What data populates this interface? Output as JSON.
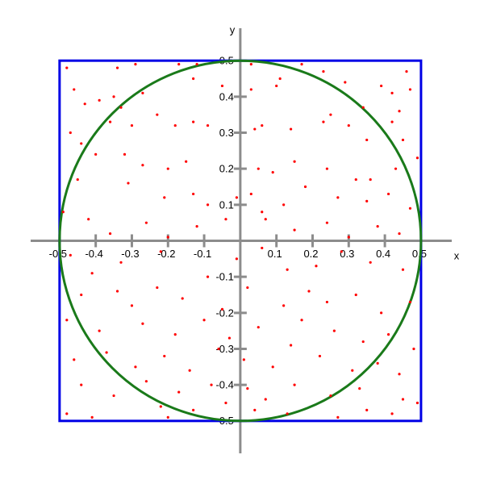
{
  "chart_data": {
    "type": "scatter",
    "x_label": "x",
    "y_label": "y",
    "xlim": [
      -0.58,
      0.585
    ],
    "ylim": [
      -0.59,
      0.59
    ],
    "xticks": [
      -0.5,
      -0.4,
      -0.3,
      -0.2,
      -0.1,
      0.1,
      0.2,
      0.3,
      0.4,
      0.5
    ],
    "yticks": [
      -0.5,
      -0.4,
      -0.3,
      -0.2,
      -0.1,
      0.1,
      0.2,
      0.3,
      0.4,
      0.5
    ],
    "color": "#ff0000",
    "square": {
      "bounds": [
        -0.5,
        0.5
      ],
      "color": "#0000e6"
    },
    "circle": {
      "radius": 0.5,
      "color": "#1a7a1a"
    },
    "x": [
      -0.48,
      -0.34,
      -0.29,
      -0.17,
      -0.12,
      0.03,
      0.17,
      0.46,
      -0.46,
      -0.43,
      -0.39,
      -0.35,
      -0.33,
      -0.27,
      -0.13,
      -0.05,
      0.03,
      0.1,
      0.11,
      0.23,
      0.29,
      0.34,
      0.39,
      0.42,
      0.44,
      0.47,
      -0.47,
      -0.44,
      -0.36,
      -0.3,
      -0.23,
      -0.18,
      -0.13,
      -0.09,
      0.04,
      0.06,
      0.14,
      0.23,
      0.25,
      0.3,
      0.35,
      0.42,
      0.45,
      -0.4,
      -0.32,
      -0.27,
      -0.2,
      -0.15,
      0.05,
      0.09,
      0.15,
      0.24,
      0.32,
      0.36,
      0.43,
      0.49,
      -0.45,
      -0.31,
      -0.21,
      -0.13,
      -0.09,
      -0.01,
      0.03,
      0.06,
      0.12,
      0.18,
      0.27,
      0.35,
      0.41,
      0.47,
      -0.49,
      -0.42,
      -0.36,
      -0.26,
      -0.2,
      -0.12,
      -0.04,
      0.07,
      0.15,
      0.24,
      0.3,
      0.38,
      0.44,
      -0.47,
      -0.41,
      -0.33,
      -0.22,
      -0.09,
      -0.01,
      0.06,
      0.13,
      0.21,
      0.28,
      0.36,
      0.45,
      -0.44,
      -0.34,
      -0.3,
      -0.23,
      -0.16,
      -0.05,
      0.02,
      0.12,
      0.19,
      0.24,
      0.32,
      0.39,
      0.47,
      -0.48,
      -0.39,
      -0.27,
      -0.18,
      -0.1,
      -0.03,
      0.05,
      0.17,
      0.26,
      0.34,
      0.41,
      0.48,
      -0.46,
      -0.37,
      -0.29,
      -0.21,
      -0.14,
      -0.06,
      0.01,
      0.09,
      0.14,
      0.22,
      0.31,
      0.38,
      0.44,
      -0.44,
      -0.35,
      -0.26,
      -0.17,
      -0.08,
      0.02,
      0.07,
      0.15,
      0.25,
      0.33,
      0.45,
      -0.48,
      -0.41,
      -0.22,
      -0.2,
      -0.13,
      -0.04,
      0.04,
      0.13,
      0.27,
      0.35,
      0.42,
      0.49
    ],
    "values": [
      0.48,
      0.48,
      0.49,
      0.49,
      0.49,
      0.49,
      0.49,
      0.47,
      0.42,
      0.38,
      0.39,
      0.4,
      0.37,
      0.41,
      0.45,
      0.43,
      0.42,
      0.43,
      0.45,
      0.47,
      0.44,
      0.37,
      0.43,
      0.41,
      0.36,
      0.42,
      0.3,
      0.27,
      0.33,
      0.32,
      0.35,
      0.32,
      0.33,
      0.32,
      0.31,
      0.32,
      0.31,
      0.33,
      0.35,
      0.32,
      0.28,
      0.33,
      0.28,
      0.24,
      0.24,
      0.21,
      0.2,
      0.22,
      0.2,
      0.19,
      0.22,
      0.2,
      0.17,
      0.17,
      0.2,
      0.23,
      0.17,
      0.16,
      0.12,
      0.13,
      0.1,
      0.12,
      0.13,
      0.08,
      0.1,
      0.15,
      0.12,
      0.11,
      0.13,
      0.09,
      0.08,
      0.06,
      0.02,
      0.05,
      0.01,
      0.04,
      0.06,
      0.06,
      0.03,
      0.05,
      0.01,
      0.04,
      0.02,
      -0.04,
      -0.09,
      -0.06,
      -0.03,
      -0.1,
      -0.05,
      -0.02,
      -0.08,
      -0.07,
      -0.03,
      -0.06,
      -0.08,
      -0.15,
      -0.14,
      -0.18,
      -0.13,
      -0.16,
      -0.19,
      -0.13,
      -0.18,
      -0.14,
      -0.17,
      -0.15,
      -0.2,
      -0.17,
      -0.22,
      -0.25,
      -0.23,
      -0.26,
      -0.22,
      -0.27,
      -0.24,
      -0.22,
      -0.25,
      -0.28,
      -0.26,
      -0.3,
      -0.33,
      -0.31,
      -0.35,
      -0.32,
      -0.36,
      -0.3,
      -0.33,
      -0.35,
      -0.29,
      -0.32,
      -0.36,
      -0.34,
      -0.37,
      -0.4,
      -0.43,
      -0.39,
      -0.42,
      -0.4,
      -0.41,
      -0.44,
      -0.4,
      -0.43,
      -0.41,
      -0.44,
      -0.48,
      -0.49,
      -0.46,
      -0.49,
      -0.47,
      -0.45,
      -0.47,
      -0.48,
      -0.49,
      -0.47,
      -0.48,
      -0.45
    ]
  }
}
